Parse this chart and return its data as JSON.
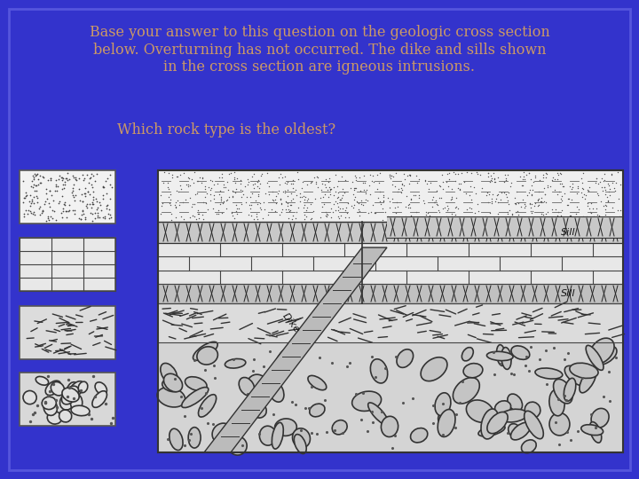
{
  "bg_color": "#3333cc",
  "border_color": "#5555dd",
  "text_color": "#cc9966",
  "title_text": "Base your answer to this question on the geologic cross section\nbelow. Overturning has not occurred. The dike and sills shown\nin the cross section are igneous intrusions.",
  "question_text": "Which rock type is the oldest?",
  "title_fontsize": 11.5,
  "question_fontsize": 11.5,
  "figsize": [
    7.2,
    5.4
  ],
  "dpi": 100
}
